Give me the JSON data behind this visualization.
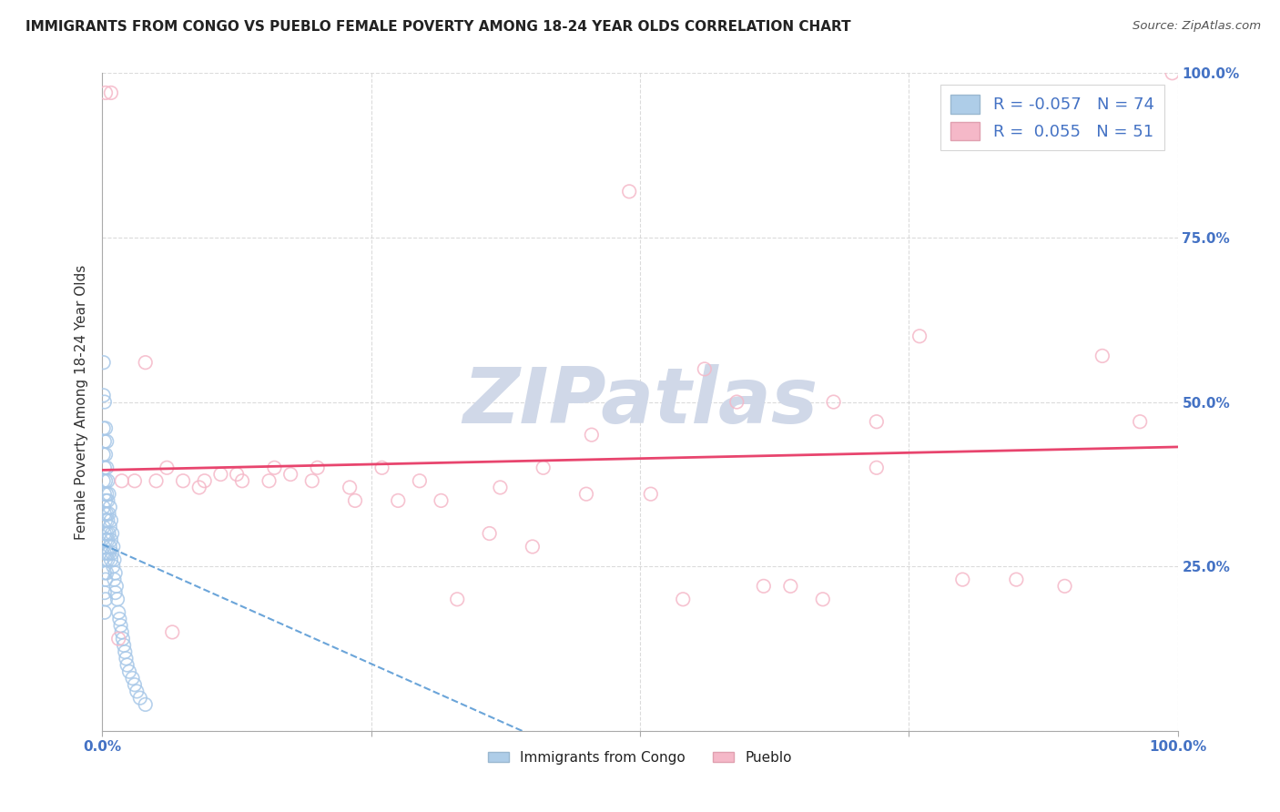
{
  "title": "IMMIGRANTS FROM CONGO VS PUEBLO FEMALE POVERTY AMONG 18-24 YEAR OLDS CORRELATION CHART",
  "source": "Source: ZipAtlas.com",
  "ylabel": "Female Poverty Among 18-24 Year Olds",
  "legend_label1": "Immigrants from Congo",
  "legend_label2": "Pueblo",
  "r1": -0.057,
  "n1": 74,
  "r2": 0.055,
  "n2": 51,
  "xlim": [
    0,
    1
  ],
  "ylim": [
    0,
    1
  ],
  "xticks": [
    0.0,
    0.25,
    0.5,
    0.75,
    1.0
  ],
  "xticklabels": [
    "0.0%",
    "",
    "",
    "",
    "100.0%"
  ],
  "yticks": [
    0.0,
    0.25,
    0.5,
    0.75,
    1.0
  ],
  "background_color": "#ffffff",
  "color_blue": "#a8c8e8",
  "color_pink": "#f5b8c8",
  "color_blue_line": "#5b9bd5",
  "color_pink_line": "#e8456e",
  "grid_color": "#cccccc",
  "watermark_color": "#d0d8e8",
  "blue_points_x": [
    0.001,
    0.001,
    0.001,
    0.001,
    0.001,
    0.001,
    0.001,
    0.001,
    0.002,
    0.002,
    0.002,
    0.002,
    0.002,
    0.002,
    0.002,
    0.002,
    0.002,
    0.002,
    0.003,
    0.003,
    0.003,
    0.003,
    0.003,
    0.003,
    0.003,
    0.003,
    0.003,
    0.004,
    0.004,
    0.004,
    0.004,
    0.004,
    0.004,
    0.004,
    0.005,
    0.005,
    0.005,
    0.005,
    0.005,
    0.006,
    0.006,
    0.006,
    0.006,
    0.007,
    0.007,
    0.007,
    0.008,
    0.008,
    0.008,
    0.009,
    0.009,
    0.01,
    0.01,
    0.011,
    0.011,
    0.012,
    0.012,
    0.013,
    0.014,
    0.015,
    0.016,
    0.017,
    0.018,
    0.019,
    0.02,
    0.021,
    0.022,
    0.023,
    0.025,
    0.028,
    0.03,
    0.032,
    0.035,
    0.04
  ],
  "blue_points_y": [
    0.56,
    0.51,
    0.46,
    0.42,
    0.38,
    0.34,
    0.31,
    0.28,
    0.5,
    0.44,
    0.4,
    0.36,
    0.33,
    0.3,
    0.27,
    0.24,
    0.21,
    0.18,
    0.46,
    0.42,
    0.38,
    0.35,
    0.32,
    0.29,
    0.26,
    0.23,
    0.2,
    0.44,
    0.4,
    0.36,
    0.33,
    0.3,
    0.27,
    0.24,
    0.38,
    0.35,
    0.32,
    0.29,
    0.26,
    0.36,
    0.33,
    0.3,
    0.27,
    0.34,
    0.31,
    0.28,
    0.32,
    0.29,
    0.26,
    0.3,
    0.27,
    0.28,
    0.25,
    0.26,
    0.23,
    0.24,
    0.21,
    0.22,
    0.2,
    0.18,
    0.17,
    0.16,
    0.15,
    0.14,
    0.13,
    0.12,
    0.11,
    0.1,
    0.09,
    0.08,
    0.07,
    0.06,
    0.05,
    0.04
  ],
  "pink_points_x": [
    0.003,
    0.008,
    0.018,
    0.03,
    0.05,
    0.06,
    0.075,
    0.09,
    0.11,
    0.13,
    0.155,
    0.175,
    0.2,
    0.23,
    0.26,
    0.295,
    0.33,
    0.37,
    0.41,
    0.45,
    0.49,
    0.54,
    0.59,
    0.64,
    0.68,
    0.72,
    0.76,
    0.8,
    0.85,
    0.895,
    0.93,
    0.965,
    0.995,
    0.015,
    0.04,
    0.065,
    0.095,
    0.125,
    0.16,
    0.195,
    0.235,
    0.275,
    0.315,
    0.36,
    0.4,
    0.455,
    0.51,
    0.56,
    0.615,
    0.67,
    0.72
  ],
  "pink_points_y": [
    0.97,
    0.97,
    0.38,
    0.38,
    0.38,
    0.4,
    0.38,
    0.37,
    0.39,
    0.38,
    0.38,
    0.39,
    0.4,
    0.37,
    0.4,
    0.38,
    0.2,
    0.37,
    0.4,
    0.36,
    0.82,
    0.2,
    0.5,
    0.22,
    0.5,
    0.47,
    0.6,
    0.23,
    0.23,
    0.22,
    0.57,
    0.47,
    1.0,
    0.14,
    0.56,
    0.15,
    0.38,
    0.39,
    0.4,
    0.38,
    0.35,
    0.35,
    0.35,
    0.3,
    0.28,
    0.45,
    0.36,
    0.55,
    0.22,
    0.2,
    0.4
  ]
}
